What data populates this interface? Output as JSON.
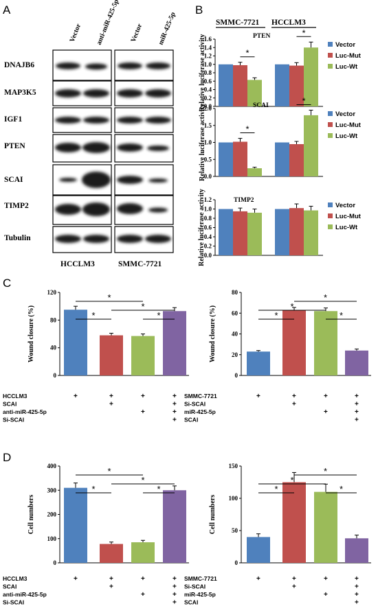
{
  "panel_A": {
    "letter": "A",
    "col_labels": [
      "Vector",
      "anti-miR-425-5p",
      "Vector",
      "miR-425-5p"
    ],
    "proteins": [
      "DNAJB6",
      "MAP3K5",
      "IGF1",
      "PTEN",
      "SCAI",
      "TIMP2",
      "Tubulin"
    ],
    "bottom_labels": [
      "HCCLM3",
      "SMMC-7721"
    ]
  },
  "panel_B": {
    "letter": "B",
    "group_headers": [
      "SMMC-7721",
      "HCCLM3"
    ],
    "legend": [
      "Vector",
      "Luc-Mut",
      "Luc-Wt"
    ]
  },
  "panel_C": {
    "letter": "C"
  },
  "panel_D": {
    "letter": "D"
  },
  "colors": {
    "blue": "#4f81bd",
    "red": "#c0504d",
    "green": "#9bbb59",
    "purple": "#8064a2"
  },
  "chart_data": [
    {
      "type": "bar",
      "panel": "B-1",
      "title": "PTEN",
      "ylabel": "Relative luciferase activity",
      "ylim": [
        0,
        1.6
      ],
      "yticks": [
        "0.0",
        "0.2",
        "0.4",
        "0.6",
        "0.8",
        "1.0",
        "1.2",
        "1.4",
        "1.6"
      ],
      "categories": [
        "SMMC-7721",
        "HCCLM3"
      ],
      "series": [
        {
          "name": "Vector",
          "values": [
            1.0,
            1.0
          ],
          "errors": [
            0,
            0
          ]
        },
        {
          "name": "Luc-Mut",
          "values": [
            0.98,
            0.97
          ],
          "errors": [
            0.07,
            0.07
          ]
        },
        {
          "name": "Luc-Wt",
          "values": [
            0.63,
            1.4
          ],
          "errors": [
            0.05,
            0.13
          ]
        }
      ],
      "significance": [
        "*",
        "*"
      ]
    },
    {
      "type": "bar",
      "panel": "B-2",
      "title": "SCAI",
      "ylabel": "Relative luciferase activity",
      "ylim": [
        0,
        2.0
      ],
      "yticks": [
        "0.0",
        "0.5",
        "1.0",
        "1.5",
        "2.0"
      ],
      "categories": [
        "SMMC-7721",
        "HCCLM3"
      ],
      "series": [
        {
          "name": "Vector",
          "values": [
            1.0,
            1.0
          ],
          "errors": [
            0,
            0
          ]
        },
        {
          "name": "Luc-Mut",
          "values": [
            1.02,
            0.95
          ],
          "errors": [
            0.1,
            0.08
          ]
        },
        {
          "name": "Luc-Wt",
          "values": [
            0.24,
            1.8
          ],
          "errors": [
            0.03,
            0.15
          ]
        }
      ],
      "significance": [
        "*",
        "*"
      ]
    },
    {
      "type": "bar",
      "panel": "B-3",
      "title": "TIMP2",
      "ylabel": "Relative luciferase activity",
      "ylim": [
        0,
        1.2
      ],
      "yticks": [
        "0.0",
        "0.2",
        "0.4",
        "0.6",
        "0.8",
        "1.0",
        "1.2"
      ],
      "categories": [
        "SMMC-7721",
        "HCCLM3"
      ],
      "series": [
        {
          "name": "Vector",
          "values": [
            1.0,
            1.0
          ],
          "errors": [
            0,
            0
          ]
        },
        {
          "name": "Luc-Mut",
          "values": [
            0.95,
            1.02
          ],
          "errors": [
            0.07,
            0.09
          ]
        },
        {
          "name": "Luc-Wt",
          "values": [
            0.92,
            0.97
          ],
          "errors": [
            0.08,
            0.09
          ]
        }
      ],
      "significance": []
    },
    {
      "type": "bar",
      "panel": "C-left",
      "ylabel": "Wound closure (%)",
      "ylim": [
        0,
        120
      ],
      "yticks": [
        "0",
        "40",
        "80",
        "120"
      ],
      "values": [
        95,
        58,
        57,
        93
      ],
      "errors": [
        5,
        3,
        3,
        5
      ],
      "colors": [
        "#4f81bd",
        "#c0504d",
        "#9bbb59",
        "#8064a2"
      ],
      "conditions": [
        "HCCLM3",
        "SCAI",
        "anti-miR-425-5p",
        "Si-SCAI"
      ],
      "pm": [
        [
          "+",
          "+",
          "+",
          "+"
        ],
        [
          "",
          "+",
          "",
          "+"
        ],
        [
          "",
          "",
          "+",
          "+"
        ],
        [
          "",
          "",
          "",
          "+"
        ]
      ],
      "brackets": [
        [
          0,
          1
        ],
        [
          1,
          3
        ],
        [
          0,
          2
        ],
        [
          2,
          3
        ]
      ]
    },
    {
      "type": "bar",
      "panel": "C-right",
      "ylabel": "Wound closure (%)",
      "ylim": [
        0,
        80
      ],
      "yticks": [
        "0",
        "20",
        "40",
        "60",
        "80"
      ],
      "values": [
        23,
        63,
        62,
        24
      ],
      "errors": [
        1,
        2.5,
        3,
        1.5
      ],
      "colors": [
        "#4f81bd",
        "#c0504d",
        "#9bbb59",
        "#8064a2"
      ],
      "conditions": [
        "SMMC-7721",
        "Si-SCAI",
        "miR-425-5p",
        "SCAI"
      ],
      "pm": [
        [
          "+",
          "+",
          "+",
          "+"
        ],
        [
          "",
          "+",
          "",
          "+"
        ],
        [
          "",
          "",
          "+",
          "+"
        ],
        [
          "",
          "",
          "",
          "+"
        ]
      ],
      "brackets": [
        [
          0,
          1
        ],
        [
          0,
          2
        ],
        [
          1,
          3
        ],
        [
          2,
          3
        ]
      ]
    },
    {
      "type": "bar",
      "panel": "D-left",
      "ylabel": "Cell numbers",
      "ylim": [
        0,
        400
      ],
      "yticks": [
        "0",
        "100",
        "200",
        "300",
        "400"
      ],
      "values": [
        310,
        78,
        85,
        300
      ],
      "errors": [
        20,
        8,
        8,
        18
      ],
      "colors": [
        "#4f81bd",
        "#c0504d",
        "#9bbb59",
        "#8064a2"
      ],
      "conditions": [
        "HCCLM3",
        "SCAI",
        "anti-miR-425-5p",
        "Si-SCAI"
      ],
      "pm": [
        [
          "+",
          "+",
          "+",
          "+"
        ],
        [
          "",
          "+",
          "",
          "+"
        ],
        [
          "",
          "",
          "+",
          "+"
        ],
        [
          "",
          "",
          "",
          "+"
        ]
      ],
      "brackets": [
        [
          0,
          1
        ],
        [
          1,
          3
        ],
        [
          0,
          2
        ],
        [
          2,
          3
        ]
      ]
    },
    {
      "type": "bar",
      "panel": "D-right",
      "ylabel": "Cell numbers",
      "ylim": [
        0,
        150
      ],
      "yticks": [
        "0",
        "50",
        "100",
        "150"
      ],
      "values": [
        40,
        125,
        110,
        38
      ],
      "errors": [
        5,
        15,
        12,
        5
      ],
      "colors": [
        "#4f81bd",
        "#c0504d",
        "#9bbb59",
        "#8064a2"
      ],
      "conditions": [
        "SMMC-7721",
        "Si-SCAI",
        "miR-425-5p",
        "SCAI"
      ],
      "pm": [
        [
          "+",
          "+",
          "+",
          "+"
        ],
        [
          "",
          "+",
          "",
          "+"
        ],
        [
          "",
          "",
          "+",
          "+"
        ],
        [
          "",
          "",
          "",
          "+"
        ]
      ],
      "brackets": [
        [
          0,
          1
        ],
        [
          0,
          2
        ],
        [
          1,
          3
        ],
        [
          2,
          3
        ]
      ]
    }
  ]
}
